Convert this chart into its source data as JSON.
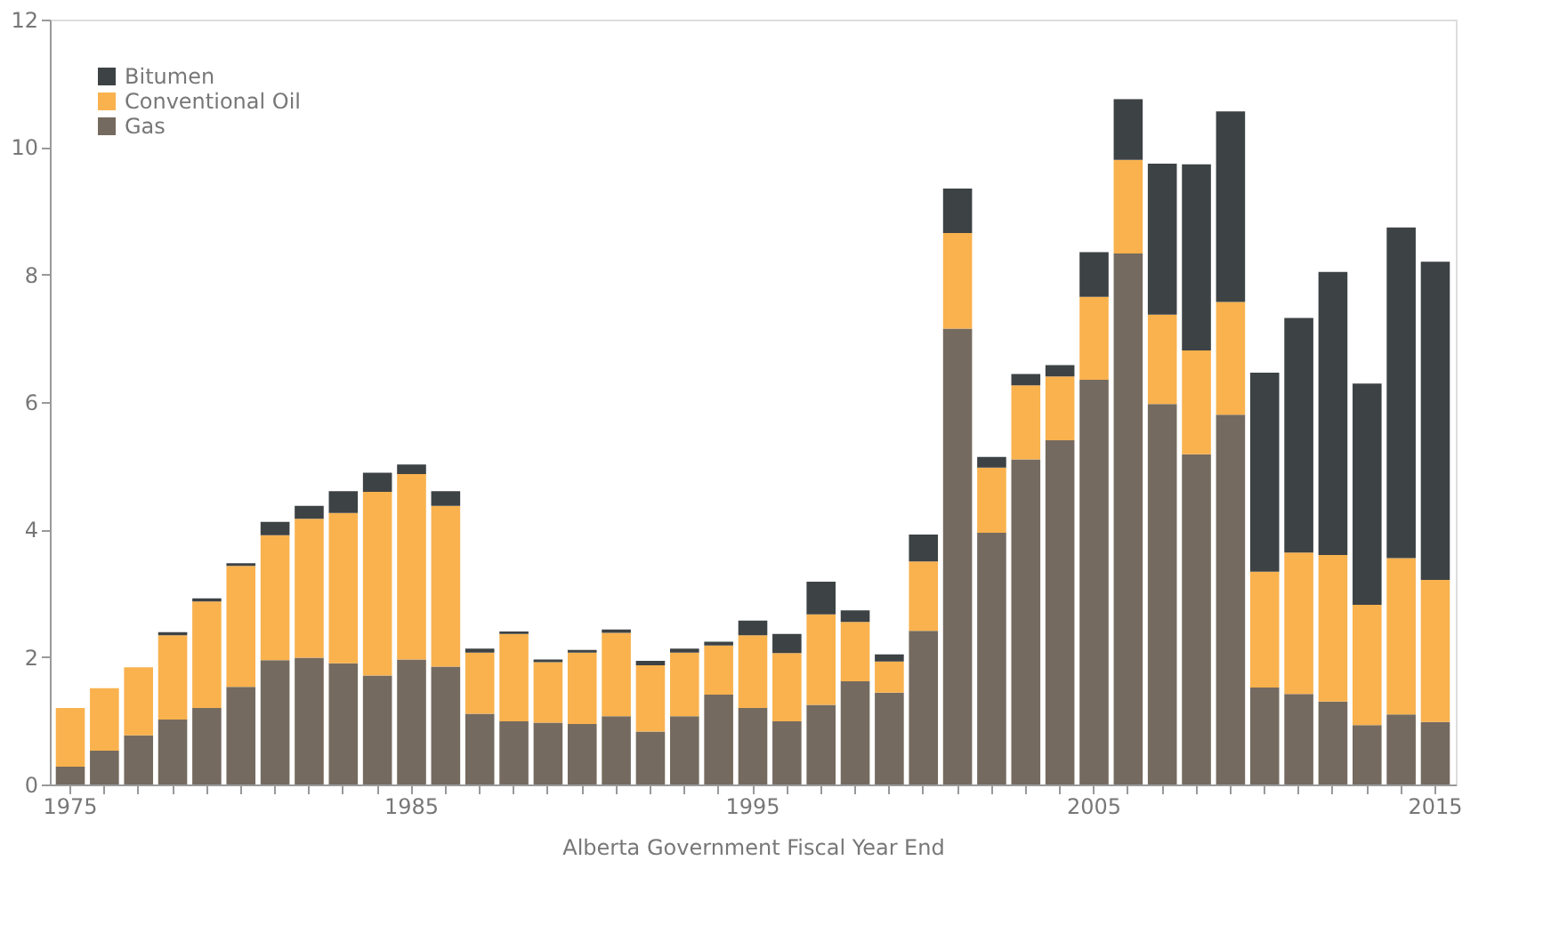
{
  "chart_data": {
    "type": "bar",
    "stacked": true,
    "xlabel": "Alberta Government Fiscal Year End",
    "categories": [
      "1975",
      null,
      null,
      null,
      null,
      null,
      null,
      null,
      null,
      null,
      "1985",
      null,
      null,
      null,
      null,
      null,
      null,
      null,
      null,
      null,
      "1995",
      null,
      null,
      null,
      null,
      null,
      null,
      null,
      null,
      null,
      "2005",
      null,
      null,
      null,
      null,
      null,
      null,
      null,
      null,
      null,
      "2015"
    ],
    "series": [
      {
        "name": "Gas",
        "color": "#756a5f",
        "values": [
          0.28,
          0.53,
          0.77,
          1.02,
          1.2,
          1.53,
          1.95,
          1.99,
          1.9,
          1.71,
          1.96,
          1.85,
          1.11,
          0.99,
          0.97,
          0.95,
          1.07,
          0.83,
          1.07,
          1.41,
          1.2,
          0.99,
          1.25,
          1.62,
          1.44,
          2.41,
          7.15,
          3.95,
          5.1,
          5.4,
          6.35,
          8.33,
          5.97,
          5.18,
          5.8,
          1.52,
          1.42,
          1.3,
          0.93,
          1.1,
          0.98
        ]
      },
      {
        "name": "Conventional Oil",
        "color": "#f9b24e",
        "values": [
          0.92,
          0.98,
          1.07,
          1.32,
          1.67,
          1.9,
          1.96,
          2.18,
          2.36,
          2.88,
          2.91,
          2.52,
          0.96,
          1.37,
          0.95,
          1.12,
          1.31,
          1.04,
          1.0,
          0.77,
          1.14,
          1.07,
          1.42,
          0.93,
          0.49,
          1.09,
          1.5,
          1.02,
          1.16,
          1.0,
          1.3,
          1.47,
          1.4,
          1.63,
          1.77,
          1.82,
          2.22,
          2.3,
          1.89,
          2.45,
          2.23
        ]
      },
      {
        "name": "Bitumen",
        "color": "#3d4244",
        "values": [
          0,
          0,
          0,
          0.05,
          0.05,
          0.04,
          0.21,
          0.2,
          0.34,
          0.3,
          0.15,
          0.23,
          0.06,
          0.04,
          0.04,
          0.04,
          0.05,
          0.07,
          0.06,
          0.06,
          0.23,
          0.3,
          0.51,
          0.18,
          0.11,
          0.42,
          0.7,
          0.17,
          0.18,
          0.18,
          0.7,
          0.95,
          2.37,
          2.92,
          2.99,
          3.12,
          3.68,
          4.44,
          3.47,
          5.19,
          4.99
        ]
      }
    ],
    "ylim": [
      0,
      12
    ],
    "yticks": [
      0,
      2,
      4,
      6,
      8,
      10,
      12
    ],
    "grid": false,
    "legend": "top left"
  }
}
